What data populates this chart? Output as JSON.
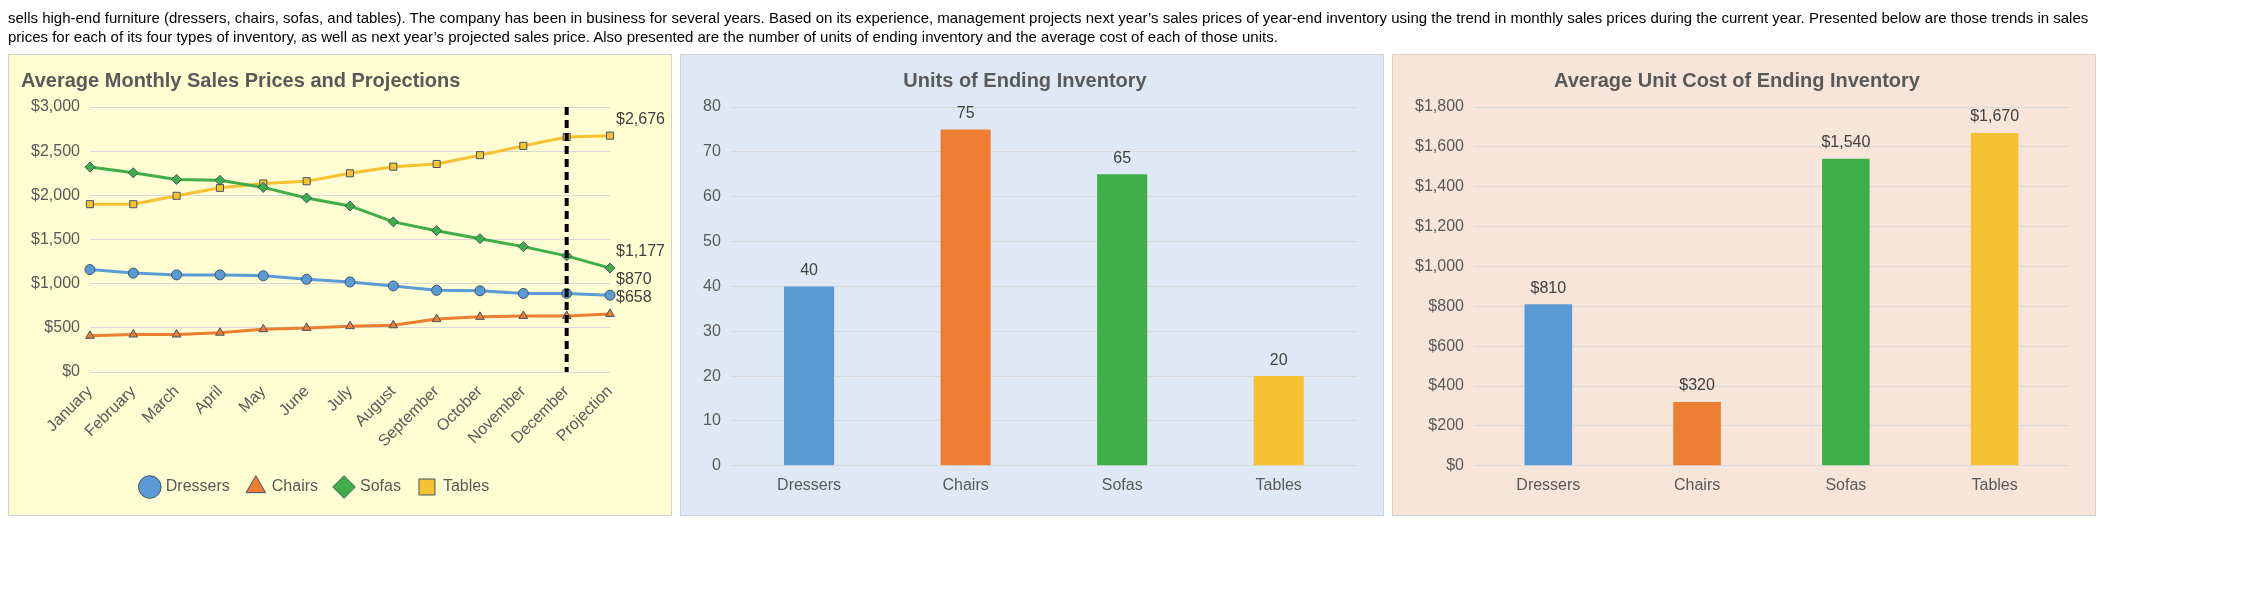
{
  "chart_data": [
    {
      "type": "other",
      "annotations": [
        "sells high-end furniture (dressers, chairs, sofas, and tables). The company has been in business for several years. Based on its experience, management projects next year’s sales prices of year-end inventory using the trend in monthly sales prices during the current year. Presented below are those trends in sales prices for each of its four types of inventory, as well as next year’s projected sales price. Also presented are the number of units of ending inventory and the average cost of each of those units."
      ]
    },
    {
      "type": "line",
      "title": "Average Monthly Sales Prices and Projections",
      "categories": [
        "January",
        "February",
        "March",
        "April",
        "May",
        "June",
        "July",
        "August",
        "September",
        "October",
        "November",
        "December",
        "Projection"
      ],
      "series": [
        {
          "name": "Dressers",
          "color": "#5b9bd5",
          "marker": "circle",
          "values": [
            1160,
            1120,
            1100,
            1100,
            1090,
            1050,
            1020,
            975,
            925,
            920,
            890,
            890,
            870
          ],
          "value_labels": [
            null,
            null,
            null,
            null,
            null,
            null,
            null,
            null,
            null,
            null,
            null,
            null,
            "$870"
          ]
        },
        {
          "name": "Chairs",
          "color": "#ed7d31",
          "marker": "triangle",
          "values": [
            410,
            425,
            425,
            445,
            485,
            500,
            520,
            530,
            600,
            625,
            635,
            635,
            658
          ],
          "value_labels": [
            null,
            null,
            null,
            null,
            null,
            null,
            null,
            null,
            null,
            null,
            null,
            null,
            "$658"
          ]
        },
        {
          "name": "Sofas",
          "color": "#3fae49",
          "marker": "diamond",
          "values": [
            2320,
            2255,
            2180,
            2170,
            2090,
            1970,
            1880,
            1700,
            1600,
            1510,
            1420,
            1315,
            1177
          ],
          "value_labels": [
            null,
            null,
            null,
            null,
            null,
            null,
            null,
            null,
            null,
            null,
            null,
            null,
            "$1,177"
          ]
        },
        {
          "name": "Tables",
          "color": "#f5c231",
          "marker": "square",
          "values": [
            1900,
            1900,
            1995,
            2085,
            2135,
            2160,
            2250,
            2325,
            2355,
            2455,
            2560,
            2660,
            2676
          ],
          "value_labels": [
            null,
            null,
            null,
            null,
            null,
            null,
            null,
            null,
            null,
            null,
            null,
            null,
            "$2,676"
          ]
        }
      ],
      "ylim": [
        0,
        3000
      ],
      "yticks": [
        {
          "value": 0,
          "label": "$0"
        },
        {
          "value": 500,
          "label": "$500"
        },
        {
          "value": 1000,
          "label": "$1,000"
        },
        {
          "value": 1500,
          "label": "$1,500"
        },
        {
          "value": 2000,
          "label": "$2,000"
        },
        {
          "value": 2500,
          "label": "$2,500"
        },
        {
          "value": 3000,
          "label": "$3,000"
        }
      ],
      "grid": "y",
      "legend": "bottom",
      "line_style": "solid",
      "ref_lines": [
        {
          "axis": "x",
          "value": "December",
          "color": "#000000",
          "line_style": "dashed"
        }
      ]
    },
    {
      "type": "bar",
      "title": "Units of Ending Inventory",
      "categories": [
        "Dressers",
        "Chairs",
        "Sofas",
        "Tables"
      ],
      "values": [
        40,
        75,
        65,
        20
      ],
      "colors": [
        "#5b9bd5",
        "#ed7d31",
        "#3fae49",
        "#f5c231"
      ],
      "ylim": [
        0,
        80
      ],
      "yticks": [
        0,
        10,
        20,
        30,
        40,
        50,
        60,
        70,
        80
      ],
      "grid": "y",
      "legend": false,
      "data_labels": true
    },
    {
      "type": "bar",
      "title": "Average Unit Cost of Ending Inventory",
      "categories": [
        "Dressers",
        "Chairs",
        "Sofas",
        "Tables"
      ],
      "values": [
        810,
        320,
        1540,
        1670
      ],
      "colors": [
        "#5b9bd5",
        "#ed7d31",
        "#3fae49",
        "#f5c231"
      ],
      "value_labels": [
        "$810",
        "$320",
        "$1,540",
        "$1,670"
      ],
      "ylim": [
        0,
        1800
      ],
      "yticks": [
        {
          "value": 0,
          "label": "$0"
        },
        {
          "value": 200,
          "label": "$200"
        },
        {
          "value": 400,
          "label": "$400"
        },
        {
          "value": 600,
          "label": "$600"
        },
        {
          "value": 800,
          "label": "$800"
        },
        {
          "value": 1000,
          "label": "$1,000"
        },
        {
          "value": 1200,
          "label": "$1,200"
        },
        {
          "value": 1400,
          "label": "$1,400"
        },
        {
          "value": 1600,
          "label": "$1,600"
        },
        {
          "value": 1800,
          "label": "$1,800"
        }
      ],
      "grid": "y",
      "legend": false
    }
  ]
}
